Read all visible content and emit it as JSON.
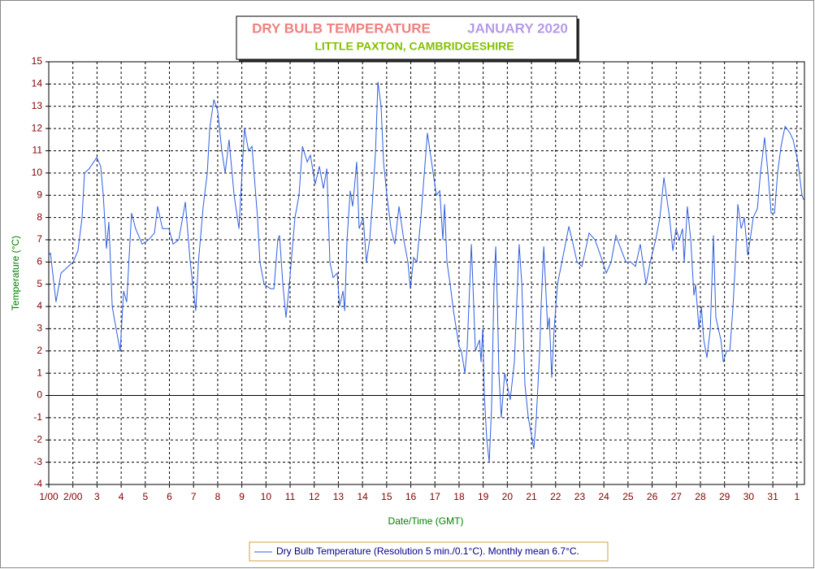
{
  "chart_data": {
    "type": "line",
    "title": "DRY BULB TEMPERATURE",
    "title_period": "JANUARY 2020",
    "subtitle": "LITTLE PAXTON, CAMBRIDGESHIRE",
    "y_label": "Temperature (°C)",
    "x_label": "Date/Time (GMT)",
    "grid": true,
    "legend": "bottom",
    "xlim": [
      0,
      31.31
    ],
    "ylim": [
      -4,
      15
    ],
    "yticks": [
      -4,
      -3,
      -2,
      -1,
      0,
      1,
      2,
      3,
      4,
      5,
      6,
      7,
      8,
      9,
      10,
      11,
      12,
      13,
      14,
      15
    ],
    "xticks": [
      {
        "value": 0,
        "label": "1/00"
      },
      {
        "value": 1,
        "label": "2/00"
      },
      {
        "value": 2,
        "label": "3"
      },
      {
        "value": 3,
        "label": "4"
      },
      {
        "value": 4,
        "label": "5"
      },
      {
        "value": 5,
        "label": "6"
      },
      {
        "value": 6,
        "label": "7"
      },
      {
        "value": 7,
        "label": "8"
      },
      {
        "value": 8,
        "label": "9"
      },
      {
        "value": 9,
        "label": "10"
      },
      {
        "value": 10,
        "label": "11"
      },
      {
        "value": 11,
        "label": "12"
      },
      {
        "value": 12,
        "label": "13"
      },
      {
        "value": 13,
        "label": "14"
      },
      {
        "value": 14,
        "label": "15"
      },
      {
        "value": 15,
        "label": "16"
      },
      {
        "value": 16,
        "label": "17"
      },
      {
        "value": 17,
        "label": "18"
      },
      {
        "value": 18,
        "label": "19"
      },
      {
        "value": 19,
        "label": "20"
      },
      {
        "value": 20,
        "label": "21"
      },
      {
        "value": 21,
        "label": "22"
      },
      {
        "value": 22,
        "label": "23"
      },
      {
        "value": 23,
        "label": "24"
      },
      {
        "value": 24,
        "label": "25"
      },
      {
        "value": 25,
        "label": "26"
      },
      {
        "value": 26,
        "label": "27"
      },
      {
        "value": 27,
        "label": "28"
      },
      {
        "value": 28,
        "label": "29"
      },
      {
        "value": 29,
        "label": "30"
      },
      {
        "value": 30,
        "label": "31"
      },
      {
        "value": 31,
        "label": "1"
      }
    ],
    "x": [
      0,
      0.07,
      0.3,
      0.51,
      0.71,
      1.01,
      1.21,
      1.38,
      1.48,
      1.68,
      1.99,
      2.15,
      2.26,
      2.39,
      2.49,
      2.63,
      2.79,
      2.96,
      3.1,
      3.23,
      3.43,
      3.6,
      3.87,
      4.14,
      4.38,
      4.51,
      4.71,
      4.98,
      5.15,
      5.39,
      5.66,
      5.86,
      6.09,
      6.2,
      6.4,
      6.57,
      6.67,
      6.84,
      7.0,
      7.17,
      7.31,
      7.47,
      7.68,
      7.88,
      8.11,
      8.28,
      8.42,
      8.65,
      8.75,
      8.92,
      9.19,
      9.33,
      9.49,
      9.56,
      9.7,
      9.83,
      9.97,
      10.2,
      10.37,
      10.51,
      10.71,
      10.84,
      11.04,
      11.21,
      11.38,
      11.52,
      11.65,
      11.78,
      11.95,
      12.05,
      12.19,
      12.26,
      12.36,
      12.49,
      12.59,
      12.76,
      12.86,
      13.03,
      13.16,
      13.3,
      13.4,
      13.54,
      13.64,
      13.77,
      13.87,
      14.01,
      14.18,
      14.34,
      14.51,
      14.71,
      14.88,
      14.98,
      15.12,
      15.25,
      15.42,
      15.56,
      15.69,
      15.86,
      16.06,
      16.2,
      16.33,
      16.4,
      16.5,
      16.63,
      16.77,
      17.0,
      17.1,
      17.24,
      17.34,
      17.51,
      17.68,
      17.85,
      17.91,
      17.98,
      18.05,
      18.15,
      18.25,
      18.35,
      18.45,
      18.52,
      18.59,
      18.65,
      18.75,
      18.89,
      18.99,
      19.12,
      19.29,
      19.49,
      19.6,
      19.73,
      19.87,
      20.0,
      20.1,
      20.2,
      20.34,
      20.4,
      20.51,
      20.67,
      20.74,
      20.84,
      20.94,
      21.08,
      21.35,
      21.55,
      21.68,
      21.89,
      22.09,
      22.39,
      22.63,
      22.86,
      23.1,
      23.3,
      23.5,
      23.7,
      23.91,
      24.11,
      24.31,
      24.51,
      24.75,
      24.92,
      25.15,
      25.32,
      25.49,
      25.59,
      25.72,
      25.86,
      25.99,
      26.13,
      26.26,
      26.33,
      26.46,
      26.6,
      26.73,
      26.8,
      26.94,
      27.04,
      27.14,
      27.27,
      27.41,
      27.54,
      27.64,
      27.74,
      27.85,
      27.95,
      28.08,
      28.22,
      28.35,
      28.45,
      28.55,
      28.69,
      28.82,
      28.96,
      29.06,
      29.19,
      29.36,
      29.49,
      29.66,
      29.8,
      29.93,
      30.07,
      30.2,
      30.34,
      30.51,
      30.71,
      30.84,
      31.04,
      31.21,
      31.28
    ],
    "series": [
      {
        "name": "Dry Bulb Temperature (Resolution 5 min./0.1°C). Monthly mean 6.7°C.",
        "color": "#2f5fe0",
        "values": [
          6.3,
          6.4,
          4.2,
          5.5,
          5.7,
          6.0,
          6.5,
          8.0,
          10.0,
          10.2,
          10.7,
          10.3,
          9.0,
          6.6,
          7.8,
          4.0,
          3.0,
          2.0,
          4.7,
          4.2,
          8.2,
          7.5,
          6.8,
          7.0,
          7.3,
          8.5,
          7.5,
          7.5,
          6.8,
          7.0,
          8.7,
          6.0,
          3.8,
          6.0,
          8.5,
          10.0,
          12.0,
          13.3,
          12.8,
          11.0,
          10.0,
          11.5,
          9.0,
          7.5,
          12.0,
          11.0,
          11.2,
          8.0,
          6.0,
          5.0,
          4.8,
          4.8,
          7.0,
          7.2,
          5.0,
          3.5,
          5.0,
          8.0,
          9.0,
          11.2,
          10.5,
          10.8,
          9.5,
          10.3,
          9.3,
          10.2,
          6.0,
          5.3,
          5.5,
          4.0,
          4.7,
          3.8,
          7.0,
          9.2,
          8.5,
          10.5,
          7.5,
          8.0,
          6.0,
          7.0,
          8.5,
          11.0,
          14.1,
          13.0,
          10.5,
          9.0,
          7.5,
          6.8,
          8.5,
          7.0,
          6.0,
          4.8,
          6.2,
          6.0,
          8.0,
          10.0,
          11.8,
          10.5,
          9.0,
          9.2,
          7.0,
          8.6,
          6.0,
          5.0,
          3.8,
          2.2,
          2.0,
          1.0,
          2.2,
          6.8,
          2.0,
          2.5,
          1.5,
          3.0,
          0.0,
          -2.0,
          -3.0,
          -0.5,
          5.0,
          6.7,
          4.0,
          1.0,
          -1.0,
          1.0,
          0.5,
          -0.2,
          1.5,
          6.8,
          5.0,
          0.5,
          -1.0,
          -1.8,
          -2.4,
          -1.0,
          2.0,
          4.0,
          6.7,
          3.0,
          3.5,
          0.8,
          3.0,
          5.0,
          6.5,
          7.6,
          7.0,
          6.0,
          5.8,
          7.3,
          7.0,
          6.3,
          5.5,
          6.0,
          7.2,
          6.6,
          6.0,
          6.0,
          5.8,
          6.8,
          5.0,
          6.0,
          7.0,
          8.0,
          9.8,
          9.0,
          8.0,
          6.5,
          7.5,
          7.0,
          7.5,
          6.0,
          8.5,
          7.0,
          4.5,
          5.0,
          3.0,
          4.0,
          2.5,
          1.7,
          3.0,
          7.2,
          3.5,
          3.0,
          2.5,
          1.5,
          2.0,
          2.0,
          4.0,
          6.0,
          8.6,
          7.5,
          8.0,
          6.3,
          7.0,
          8.0,
          8.4,
          10.0,
          11.6,
          10.0,
          8.2,
          8.2,
          10.0,
          11.2,
          12.1,
          11.8,
          11.5,
          10.5,
          9.0,
          8.8
        ]
      }
    ]
  }
}
